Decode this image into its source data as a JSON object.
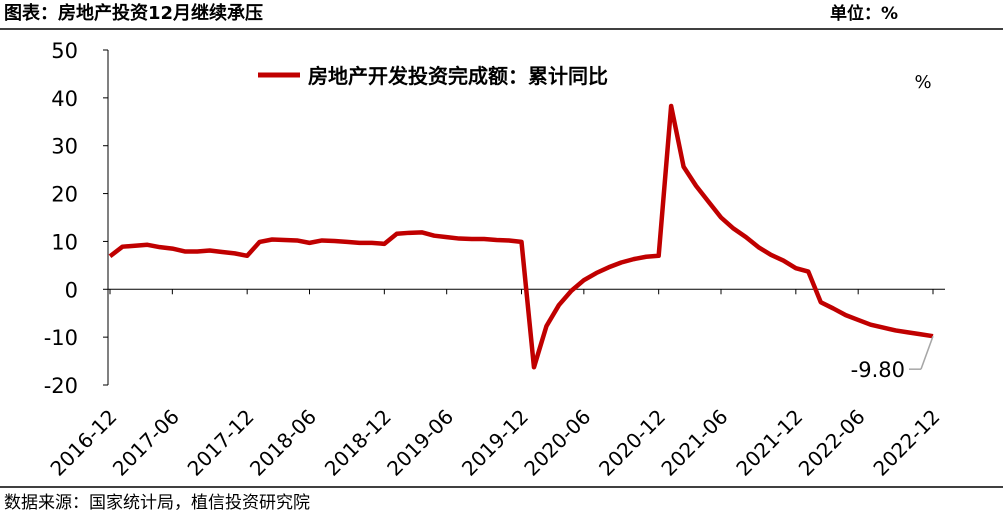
{
  "header": {
    "title": "图表：房地产投资12月继续承压",
    "unit": "单位：%"
  },
  "footer": {
    "source": "数据来源：国家统计局，植信投资研究院"
  },
  "chart_data": {
    "type": "line",
    "categories": [
      "2016-12",
      null,
      null,
      null,
      null,
      "2017-06",
      null,
      null,
      null,
      null,
      null,
      "2017-12",
      null,
      null,
      null,
      null,
      "2018-06",
      null,
      null,
      null,
      null,
      null,
      "2018-12",
      null,
      null,
      null,
      null,
      "2019-06",
      null,
      null,
      null,
      null,
      null,
      "2019-12",
      null,
      null,
      null,
      null,
      "2020-06",
      null,
      null,
      null,
      null,
      null,
      "2020-12",
      null,
      null,
      null,
      null,
      "2021-06",
      null,
      null,
      null,
      null,
      null,
      "2021-12",
      null,
      null,
      null,
      null,
      "2022-06",
      null,
      null,
      null,
      null,
      null,
      "2022-12"
    ],
    "series": [
      {
        "name": "房地产开发投资完成额：累计同比",
        "color": "#c00000",
        "values": [
          6.9,
          8.9,
          9.1,
          9.3,
          8.8,
          8.5,
          7.9,
          7.9,
          8.1,
          7.8,
          7.5,
          7.0,
          9.9,
          10.4,
          10.3,
          10.2,
          9.7,
          10.2,
          10.1,
          9.9,
          9.7,
          9.7,
          9.5,
          11.6,
          11.8,
          11.9,
          11.2,
          10.9,
          10.6,
          10.5,
          10.5,
          10.3,
          10.2,
          9.9,
          -16.3,
          -7.7,
          -3.3,
          -0.3,
          1.9,
          3.4,
          4.6,
          5.6,
          6.3,
          6.8,
          7.0,
          38.3,
          25.6,
          21.6,
          18.3,
          15.0,
          12.7,
          10.9,
          8.8,
          7.2,
          6.0,
          4.4,
          3.7,
          -2.7,
          -4.0,
          -5.4,
          -6.4,
          -7.4,
          -8.0,
          -8.6,
          -9.0,
          -9.4,
          -9.8
        ],
        "value_labels": [
          null,
          null,
          null,
          null,
          null,
          null,
          null,
          null,
          null,
          null,
          null,
          null,
          null,
          null,
          null,
          null,
          null,
          null,
          null,
          null,
          null,
          null,
          null,
          null,
          null,
          null,
          null,
          null,
          null,
          null,
          null,
          null,
          null,
          null,
          null,
          null,
          null,
          null,
          null,
          null,
          null,
          null,
          null,
          null,
          null,
          null,
          null,
          null,
          null,
          null,
          null,
          null,
          null,
          null,
          null,
          null,
          null,
          null,
          null,
          null,
          null,
          null,
          null,
          null,
          null,
          null,
          "-9.80"
        ]
      }
    ],
    "ylim": [
      -20,
      50
    ],
    "yticks": [
      -20,
      -10,
      0,
      10,
      20,
      30,
      40,
      50
    ],
    "annotation": "%",
    "legend": "top"
  }
}
